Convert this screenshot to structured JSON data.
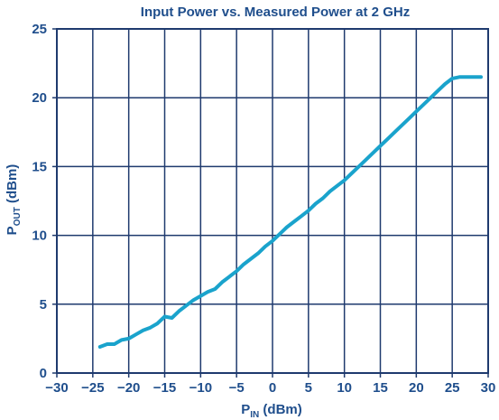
{
  "chart_data": {
    "type": "line",
    "title": "Input Power vs. Measured Power at 2 GHz",
    "xlabel": {
      "main": "P",
      "sub": "IN",
      "unit": " (dBm)"
    },
    "ylabel": {
      "main": "P",
      "sub": "OUT",
      "unit": " (dBm)"
    },
    "xlim": [
      -30,
      30
    ],
    "ylim": [
      0,
      25
    ],
    "xticks": [
      -30,
      -25,
      -20,
      -15,
      -10,
      -5,
      0,
      5,
      10,
      15,
      20,
      25,
      30
    ],
    "yticks": [
      0,
      5,
      10,
      15,
      20,
      25
    ],
    "xtick_labels": [
      "−30",
      "−25",
      "−20",
      "−15",
      "−10",
      "−5",
      "0",
      "5",
      "10",
      "15",
      "20",
      "25",
      "30"
    ],
    "ytick_labels": [
      "0",
      "5",
      "10",
      "15",
      "20",
      "25"
    ],
    "grid": true,
    "colors": {
      "line": "#1aa3cc",
      "grid": "#1f3a6e",
      "text": "#1f4e8c"
    },
    "series": [
      {
        "x": [
          -24,
          -23,
          -22,
          -21,
          -20,
          -19,
          -18,
          -17,
          -16,
          -15,
          -14,
          -13,
          -12,
          -11,
          -10,
          -9,
          -8,
          -7,
          -6,
          -5,
          -4,
          -3,
          -2,
          -1,
          0,
          1,
          2,
          3,
          4,
          5,
          6,
          7,
          8,
          9,
          10,
          11,
          12,
          13,
          14,
          15,
          16,
          17,
          18,
          19,
          20,
          21,
          22,
          23,
          24,
          25,
          26,
          27,
          28,
          29
        ],
        "y": [
          1.9,
          2.1,
          2.1,
          2.4,
          2.5,
          2.8,
          3.1,
          3.3,
          3.6,
          4.1,
          4.0,
          4.5,
          4.9,
          5.3,
          5.6,
          5.9,
          6.1,
          6.6,
          7.0,
          7.4,
          7.9,
          8.3,
          8.7,
          9.2,
          9.6,
          10.1,
          10.6,
          11.0,
          11.4,
          11.8,
          12.3,
          12.7,
          13.2,
          13.6,
          14.0,
          14.5,
          15.0,
          15.5,
          16.0,
          16.5,
          17.0,
          17.5,
          18.0,
          18.5,
          19.0,
          19.5,
          20.0,
          20.5,
          21.0,
          21.4,
          21.5,
          21.5,
          21.5,
          21.5
        ]
      }
    ]
  }
}
